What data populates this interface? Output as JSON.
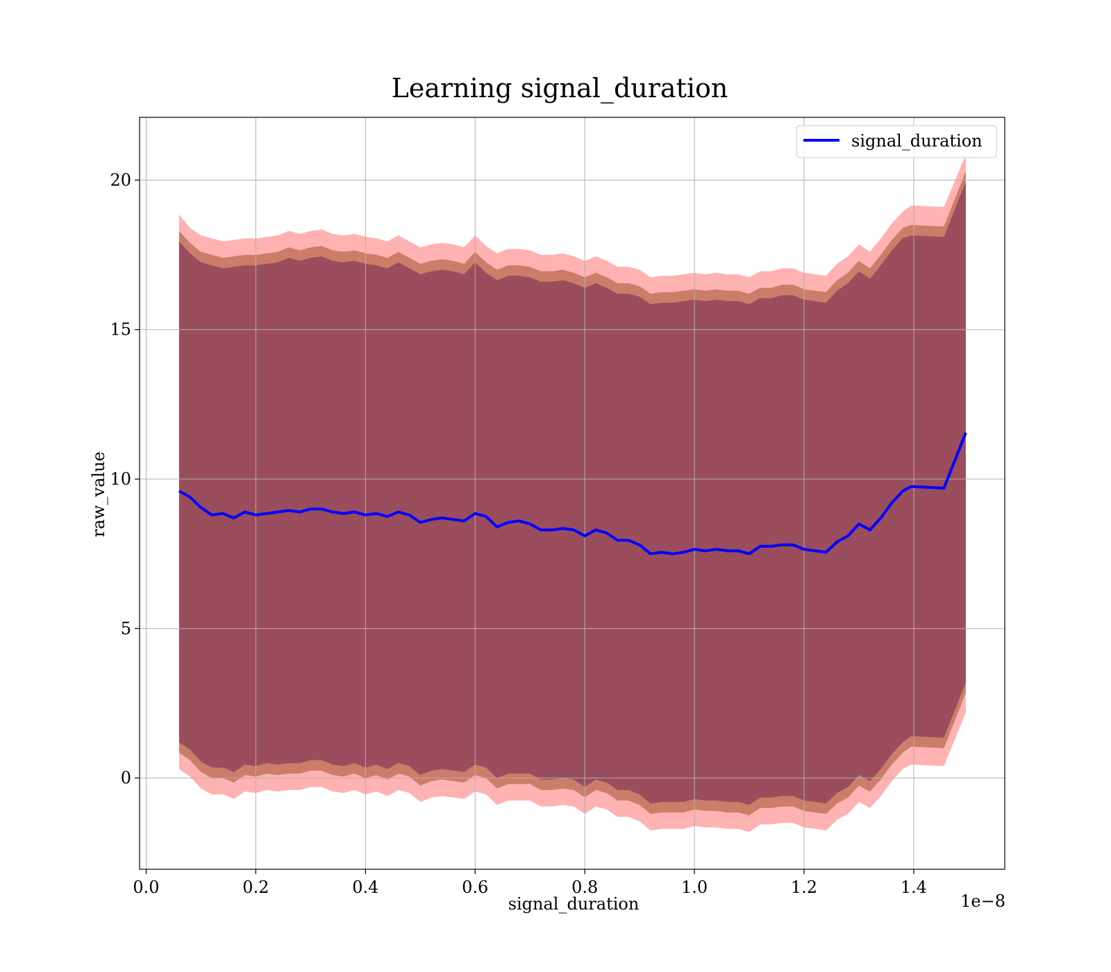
{
  "chart_data": {
    "type": "line",
    "title": "Learning signal_duration",
    "xlabel": "signal_duration",
    "ylabel": "raw_value",
    "x_offset_label": "1e−8",
    "x_tick_labels": [
      "0.0",
      "0.2",
      "0.4",
      "0.6",
      "0.8",
      "1.0",
      "1.2",
      "1.4"
    ],
    "y_tick_labels": [
      "0",
      "5",
      "10",
      "15",
      "20"
    ],
    "xlim": [
      -0.012,
      1.566
    ],
    "ylim": [
      -3.05,
      22.1
    ],
    "grid": true,
    "legend_position": "top-right",
    "colors": {
      "line": "#0000ff",
      "band": "#ff0000",
      "inner_band": "#4a004a",
      "band_edge": "#a0522d",
      "grid": "#b0b0b0"
    },
    "series": [
      {
        "name": "signal_duration",
        "x": [
          0.06,
          0.08,
          0.1,
          0.12,
          0.14,
          0.16,
          0.18,
          0.2,
          0.22,
          0.24,
          0.26,
          0.28,
          0.3,
          0.32,
          0.34,
          0.36,
          0.38,
          0.4,
          0.42,
          0.44,
          0.46,
          0.48,
          0.5,
          0.52,
          0.54,
          0.56,
          0.58,
          0.6,
          0.62,
          0.64,
          0.66,
          0.68,
          0.7,
          0.72,
          0.74,
          0.76,
          0.78,
          0.8,
          0.82,
          0.84,
          0.86,
          0.88,
          0.9,
          0.92,
          0.94,
          0.96,
          0.98,
          1.0,
          1.02,
          1.04,
          1.06,
          1.08,
          1.1,
          1.12,
          1.14,
          1.16,
          1.18,
          1.2,
          1.22,
          1.24,
          1.26,
          1.28,
          1.3,
          1.32,
          1.34,
          1.36,
          1.38,
          1.395,
          1.455,
          1.495
        ],
        "y": [
          9.6,
          9.4,
          9.05,
          8.8,
          8.85,
          8.7,
          8.9,
          8.8,
          8.85,
          8.9,
          8.95,
          8.9,
          9.0,
          9.0,
          8.9,
          8.85,
          8.9,
          8.8,
          8.85,
          8.75,
          8.9,
          8.8,
          8.55,
          8.65,
          8.7,
          8.65,
          8.6,
          8.85,
          8.75,
          8.4,
          8.55,
          8.6,
          8.5,
          8.3,
          8.3,
          8.35,
          8.3,
          8.1,
          8.3,
          8.2,
          7.95,
          7.95,
          7.8,
          7.5,
          7.55,
          7.5,
          7.55,
          7.65,
          7.6,
          7.65,
          7.6,
          7.6,
          7.5,
          7.75,
          7.75,
          7.8,
          7.8,
          7.65,
          7.6,
          7.55,
          7.9,
          8.1,
          8.5,
          8.3,
          8.7,
          9.2,
          9.6,
          9.75,
          9.7,
          11.55
        ]
      }
    ],
    "bands": [
      {
        "upper": [
          18.85,
          18.4,
          18.15,
          18.05,
          17.95,
          18.0,
          18.05,
          18.05,
          18.1,
          18.15,
          18.3,
          18.2,
          18.3,
          18.35,
          18.2,
          18.15,
          18.2,
          18.1,
          18.05,
          17.95,
          18.15,
          17.95,
          17.75,
          17.85,
          17.9,
          17.85,
          17.75,
          18.15,
          17.8,
          17.55,
          17.7,
          17.7,
          17.65,
          17.5,
          17.5,
          17.55,
          17.45,
          17.3,
          17.45,
          17.3,
          17.1,
          17.1,
          17.0,
          16.75,
          16.8,
          16.8,
          16.85,
          16.9,
          16.85,
          16.9,
          16.85,
          16.85,
          16.75,
          16.95,
          16.95,
          17.05,
          17.05,
          16.9,
          16.85,
          16.8,
          17.2,
          17.45,
          17.85,
          17.6,
          18.05,
          18.55,
          18.95,
          19.15,
          19.1,
          20.85
        ],
        "lower": [
          0.3,
          0.05,
          -0.35,
          -0.55,
          -0.55,
          -0.7,
          -0.45,
          -0.5,
          -0.4,
          -0.45,
          -0.4,
          -0.4,
          -0.3,
          -0.3,
          -0.45,
          -0.5,
          -0.4,
          -0.55,
          -0.45,
          -0.6,
          -0.4,
          -0.5,
          -0.8,
          -0.65,
          -0.6,
          -0.65,
          -0.7,
          -0.45,
          -0.55,
          -0.9,
          -0.75,
          -0.75,
          -0.75,
          -0.95,
          -0.95,
          -0.9,
          -0.95,
          -1.2,
          -0.95,
          -1.05,
          -1.3,
          -1.3,
          -1.45,
          -1.75,
          -1.7,
          -1.7,
          -1.7,
          -1.6,
          -1.65,
          -1.65,
          -1.7,
          -1.7,
          -1.8,
          -1.55,
          -1.55,
          -1.5,
          -1.5,
          -1.65,
          -1.7,
          -1.75,
          -1.4,
          -1.2,
          -0.8,
          -1.0,
          -0.6,
          -0.1,
          0.3,
          0.45,
          0.4,
          2.2
        ]
      },
      {
        "upper": [
          18.3,
          17.9,
          17.6,
          17.5,
          17.4,
          17.45,
          17.5,
          17.5,
          17.55,
          17.6,
          17.75,
          17.65,
          17.75,
          17.8,
          17.65,
          17.6,
          17.65,
          17.55,
          17.5,
          17.4,
          17.6,
          17.4,
          17.2,
          17.3,
          17.35,
          17.3,
          17.2,
          17.6,
          17.25,
          17.0,
          17.15,
          17.15,
          17.1,
          16.95,
          16.95,
          17.0,
          16.9,
          16.75,
          16.9,
          16.75,
          16.55,
          16.55,
          16.45,
          16.2,
          16.25,
          16.25,
          16.3,
          16.35,
          16.3,
          16.35,
          16.3,
          16.3,
          16.2,
          16.4,
          16.4,
          16.5,
          16.5,
          16.35,
          16.3,
          16.25,
          16.65,
          16.9,
          17.3,
          17.05,
          17.5,
          18.0,
          18.4,
          18.5,
          18.45,
          20.3
        ],
        "lower": [
          0.85,
          0.6,
          0.2,
          0.0,
          0.0,
          -0.15,
          0.1,
          0.05,
          0.15,
          0.1,
          0.15,
          0.15,
          0.25,
          0.25,
          0.1,
          0.05,
          0.15,
          0.0,
          0.1,
          -0.05,
          0.15,
          0.05,
          -0.25,
          -0.1,
          -0.05,
          -0.1,
          -0.15,
          0.1,
          0.0,
          -0.35,
          -0.2,
          -0.2,
          -0.2,
          -0.4,
          -0.4,
          -0.35,
          -0.4,
          -0.65,
          -0.4,
          -0.5,
          -0.75,
          -0.75,
          -0.9,
          -1.2,
          -1.15,
          -1.15,
          -1.15,
          -1.05,
          -1.1,
          -1.1,
          -1.15,
          -1.15,
          -1.25,
          -1.0,
          -1.0,
          -0.95,
          -0.95,
          -1.1,
          -1.15,
          -1.2,
          -0.85,
          -0.65,
          -0.25,
          -0.45,
          -0.05,
          0.45,
          0.85,
          1.05,
          1.0,
          2.85
        ]
      }
    ]
  }
}
